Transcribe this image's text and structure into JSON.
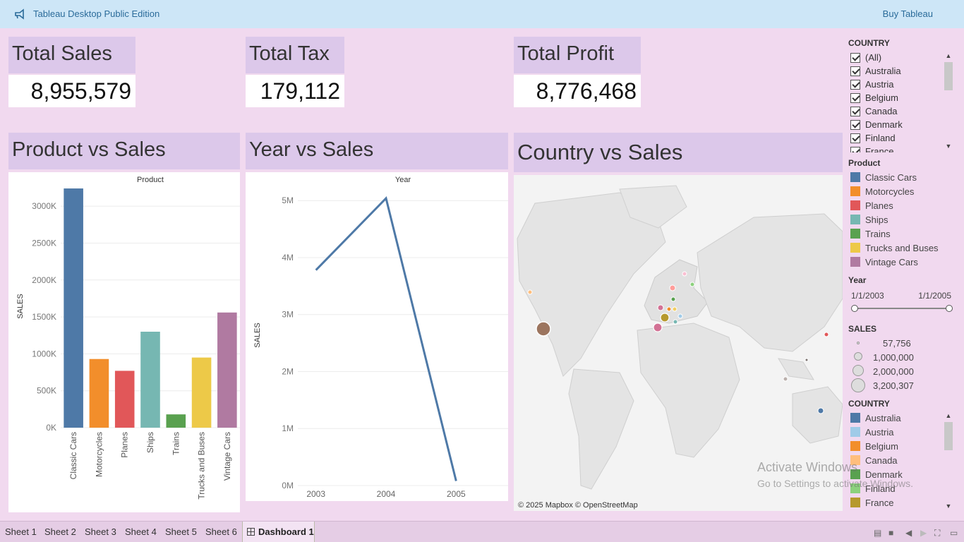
{
  "app": {
    "title": "Tableau Desktop Public Edition",
    "buy_label": "Buy Tableau"
  },
  "kpis": [
    {
      "title": "Total Sales",
      "value": "8,955,579"
    },
    {
      "title": "Total Tax",
      "value": "179,112"
    },
    {
      "title": "Total Profit",
      "value": "8,776,468"
    }
  ],
  "sheets": {
    "product_title": "Product vs Sales",
    "year_title": "Year vs Sales",
    "country_title": "Country vs Sales",
    "map_credit": "© 2025 Mapbox © OpenStreetMap"
  },
  "chart_data": [
    {
      "type": "bar",
      "title": "Product",
      "xlabel": "",
      "ylabel": "SALES",
      "categories": [
        "Classic Cars",
        "Motorcycles",
        "Planes",
        "Ships",
        "Trains",
        "Trucks and Buses",
        "Vintage Cars"
      ],
      "values": [
        3240000,
        930000,
        770000,
        1300000,
        180000,
        950000,
        1560000
      ],
      "colors": [
        "#4e79a7",
        "#f28e2b",
        "#e15759",
        "#76b7b2",
        "#59a14f",
        "#edc948",
        "#b07aa1"
      ],
      "yticks": [
        0,
        500000,
        1000000,
        1500000,
        2000000,
        2500000,
        3000000
      ],
      "yticklabels": [
        "0K",
        "500K",
        "1000K",
        "1500K",
        "2000K",
        "2500K",
        "3000K"
      ],
      "ylim": [
        0,
        3250000
      ],
      "grid": true
    },
    {
      "type": "line",
      "title": "Year",
      "xlabel": "",
      "ylabel": "SALES",
      "x": [
        "2003",
        "2004",
        "2005"
      ],
      "values": [
        3780000,
        5040000,
        80000
      ],
      "color": "#4e79a7",
      "yticks": [
        0,
        1000000,
        2000000,
        3000000,
        4000000,
        5000000
      ],
      "yticklabels": [
        "0M",
        "1M",
        "2M",
        "3M",
        "4M",
        "5M"
      ],
      "ylim": [
        0,
        5250000
      ],
      "grid": true
    }
  ],
  "filters": {
    "country_header": "COUNTRY",
    "country_items": [
      "(All)",
      "Australia",
      "Austria",
      "Belgium",
      "Canada",
      "Denmark",
      "Finland",
      "France"
    ]
  },
  "legends": {
    "product_header": "Product",
    "product_items": [
      {
        "label": "Classic Cars",
        "color": "#4e79a7"
      },
      {
        "label": "Motorcycles",
        "color": "#f28e2b"
      },
      {
        "label": "Planes",
        "color": "#e15759"
      },
      {
        "label": "Ships",
        "color": "#76b7b2"
      },
      {
        "label": "Trains",
        "color": "#59a14f"
      },
      {
        "label": "Trucks and Buses",
        "color": "#edc948"
      },
      {
        "label": "Vintage Cars",
        "color": "#b07aa1"
      }
    ],
    "year_header": "Year",
    "year_min": "1/1/2003",
    "year_max": "1/1/2005",
    "sales_header": "SALES",
    "sales_items": [
      "57,756",
      "1,000,000",
      "2,000,000",
      "3,200,307"
    ],
    "country_header": "COUNTRY",
    "country_items": [
      {
        "label": "Australia",
        "color": "#4e79a7"
      },
      {
        "label": "Austria",
        "color": "#a0cbe8"
      },
      {
        "label": "Belgium",
        "color": "#f28e2b"
      },
      {
        "label": "Canada",
        "color": "#ffbe7d"
      },
      {
        "label": "Denmark",
        "color": "#59a14f"
      },
      {
        "label": "Finland",
        "color": "#8cd17d"
      },
      {
        "label": "France",
        "color": "#b6992d"
      }
    ]
  },
  "watermark": {
    "line1": "Activate Windows",
    "line2": "Go to Settings to activate Windows."
  },
  "tabs": [
    "Sheet 1",
    "Sheet 2",
    "Sheet 3",
    "Sheet 4",
    "Sheet 5",
    "Sheet 6",
    "Dashboard 1"
  ],
  "active_tab": "Dashboard 1"
}
